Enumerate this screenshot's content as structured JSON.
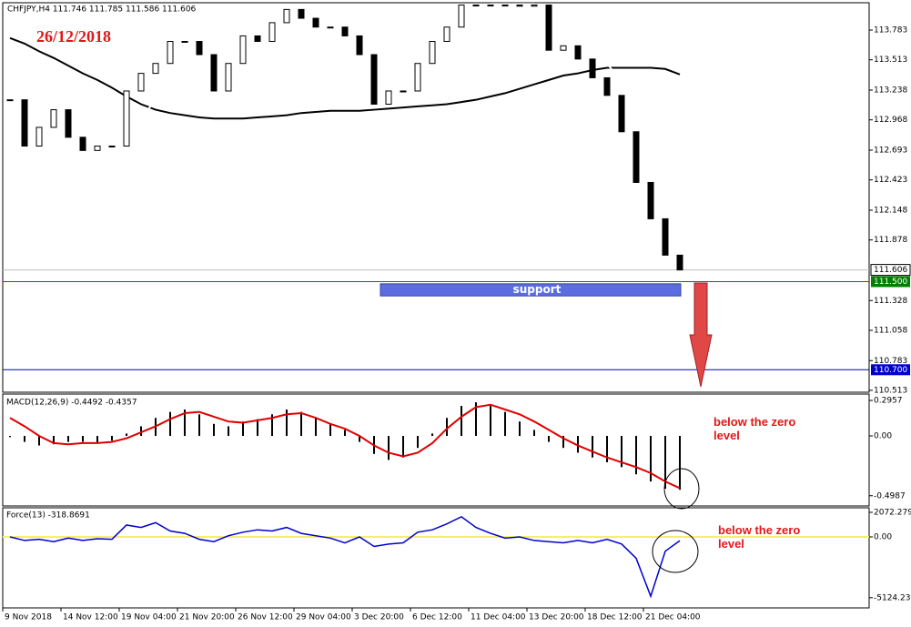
{
  "chart_data": [
    {
      "type": "candlestick",
      "title": "CHFJPY,H4 111.746 111.785 111.586 111.606",
      "annotation": "26/12/2018",
      "closes": [
        113.15,
        112.73,
        112.9,
        113.06,
        112.81,
        112.69,
        112.73,
        112.73,
        113.23,
        113.39,
        113.48,
        113.68,
        113.68,
        113.56,
        113.23,
        113.48,
        113.73,
        113.68,
        113.85,
        113.97,
        113.89,
        113.81,
        113.81,
        113.73,
        113.56,
        113.11,
        113.23,
        113.23,
        113.48,
        113.68,
        113.81,
        114.01,
        114.01,
        114.01,
        114.01,
        114.0,
        114.01,
        113.6,
        113.64,
        113.52,
        113.35,
        113.19,
        112.86,
        112.4,
        112.07,
        111.74,
        111.606
      ],
      "ma": [
        {
          "color": "#000000",
          "values": [
            113.71,
            113.66,
            113.59,
            113.53,
            113.46,
            113.39,
            113.33,
            113.26,
            113.18,
            113.11,
            113.06,
            113.03,
            113.01,
            112.99,
            112.98,
            112.98,
            112.98,
            112.99,
            113.0,
            113.01,
            113.03,
            113.04,
            113.05,
            113.05,
            113.05,
            113.06,
            113.07,
            113.08,
            113.09,
            113.1,
            113.11,
            113.13,
            113.15,
            113.18,
            113.21,
            113.25,
            113.29,
            113.33,
            113.37,
            113.39,
            113.42,
            113.44,
            113.44,
            113.44,
            113.44,
            113.43,
            113.38
          ]
        },
        {
          "color": "#ffffff",
          "values": [
            113.15,
            113.06,
            113.0,
            112.94,
            112.9,
            112.86,
            112.82,
            112.8,
            112.82,
            112.98,
            113.15,
            113.31,
            113.46,
            113.48,
            113.44,
            113.44,
            113.52,
            113.56,
            113.6,
            113.73,
            113.85,
            113.89,
            113.85,
            113.81,
            113.68,
            113.44,
            113.39,
            113.31,
            113.33,
            113.44,
            113.6,
            113.81,
            113.97,
            114.02,
            114.02,
            114.02,
            114.02,
            114.0,
            113.93,
            113.85,
            113.68,
            113.48,
            113.31,
            113.06,
            112.73,
            112.48,
            112.28
          ]
        }
      ],
      "ylim": [
        110.496,
        114.031
      ],
      "yticks": [
        113.783,
        113.513,
        113.238,
        112.968,
        112.693,
        112.423,
        112.148,
        111.878,
        111.328,
        111.058,
        110.783,
        110.513
      ],
      "last": 111.606,
      "levels": [
        {
          "value": 111.5,
          "label": "111.500",
          "color": "#008000"
        },
        {
          "value": 110.7,
          "label": "110.700",
          "color": "#0000cd"
        }
      ],
      "zone": {
        "label": "support",
        "top": 111.48,
        "bottom": 111.37,
        "color": "#5b6ee1"
      }
    },
    {
      "type": "macd",
      "title": "MACD(12,26,9) -0.4492 -0.4357",
      "annotation": "below the zero level",
      "histogram": [
        -0.01,
        -0.05,
        -0.08,
        -0.07,
        -0.05,
        -0.05,
        -0.06,
        -0.04,
        0.02,
        0.08,
        0.15,
        0.2,
        0.22,
        0.18,
        0.1,
        0.08,
        0.12,
        0.14,
        0.18,
        0.22,
        0.2,
        0.15,
        0.1,
        0.05,
        -0.05,
        -0.15,
        -0.2,
        -0.18,
        -0.1,
        0.02,
        0.15,
        0.25,
        0.28,
        0.25,
        0.2,
        0.12,
        0.05,
        -0.05,
        -0.1,
        -0.14,
        -0.18,
        -0.22,
        -0.26,
        -0.32,
        -0.38,
        -0.44,
        -0.4492
      ],
      "signal": {
        "color": "#e00000",
        "values": [
          0.15,
          0.08,
          0.0,
          -0.06,
          -0.07,
          -0.06,
          -0.06,
          -0.05,
          -0.02,
          0.03,
          0.08,
          0.14,
          0.19,
          0.2,
          0.16,
          0.12,
          0.11,
          0.13,
          0.15,
          0.18,
          0.19,
          0.15,
          0.1,
          0.06,
          0.0,
          -0.08,
          -0.14,
          -0.17,
          -0.14,
          -0.06,
          0.06,
          0.16,
          0.24,
          0.26,
          0.22,
          0.18,
          0.12,
          0.05,
          -0.02,
          -0.08,
          -0.13,
          -0.18,
          -0.22,
          -0.26,
          -0.31,
          -0.38,
          -0.4357
        ]
      },
      "ylim": [
        -0.584,
        0.349
      ],
      "yticks": [
        0.2957,
        {
          "value": 0,
          "label": "0.00"
        },
        -0.4987
      ]
    },
    {
      "type": "line",
      "title": "Force(13) -318.8691",
      "annotation": "below the zero level",
      "series": [
        {
          "color": "#0000cd",
          "values": [
            0,
            -300,
            -200,
            -400,
            -100,
            -300,
            -150,
            -200,
            1000,
            800,
            1200,
            500,
            300,
            -200,
            -400,
            100,
            400,
            600,
            500,
            800,
            300,
            100,
            -100,
            -500,
            0,
            -800,
            -600,
            -500,
            400,
            600,
            1100,
            1700,
            800,
            300,
            -100,
            0,
            -300,
            -400,
            -500,
            -300,
            -500,
            -200,
            -600,
            -1800,
            -5000,
            -1200,
            -318.8691
          ]
        }
      ],
      "zero_line_color": "#f5f06a",
      "ylim": [
        -5983,
        2456
      ],
      "yticks": [
        2072.2793,
        {
          "value": 0,
          "label": "0.00"
        },
        -5124.2314
      ],
      "categories": [
        "9 Nov 2018",
        null,
        null,
        null,
        "14 Nov 12:00",
        null,
        null,
        null,
        "19 Nov 04:00",
        null,
        null,
        null,
        "21 Nov 20:00",
        null,
        null,
        null,
        "26 Nov 12:00",
        null,
        null,
        null,
        "29 Nov 04:00",
        null,
        null,
        null,
        "3 Dec 20:00",
        null,
        null,
        null,
        "6 Dec 12:00",
        null,
        null,
        null,
        "11 Dec 04:00",
        null,
        null,
        null,
        "13 Dec 20:00",
        null,
        null,
        null,
        "18 Dec 12:00",
        null,
        null,
        null,
        "21 Dec 04:00",
        null,
        null
      ]
    }
  ]
}
